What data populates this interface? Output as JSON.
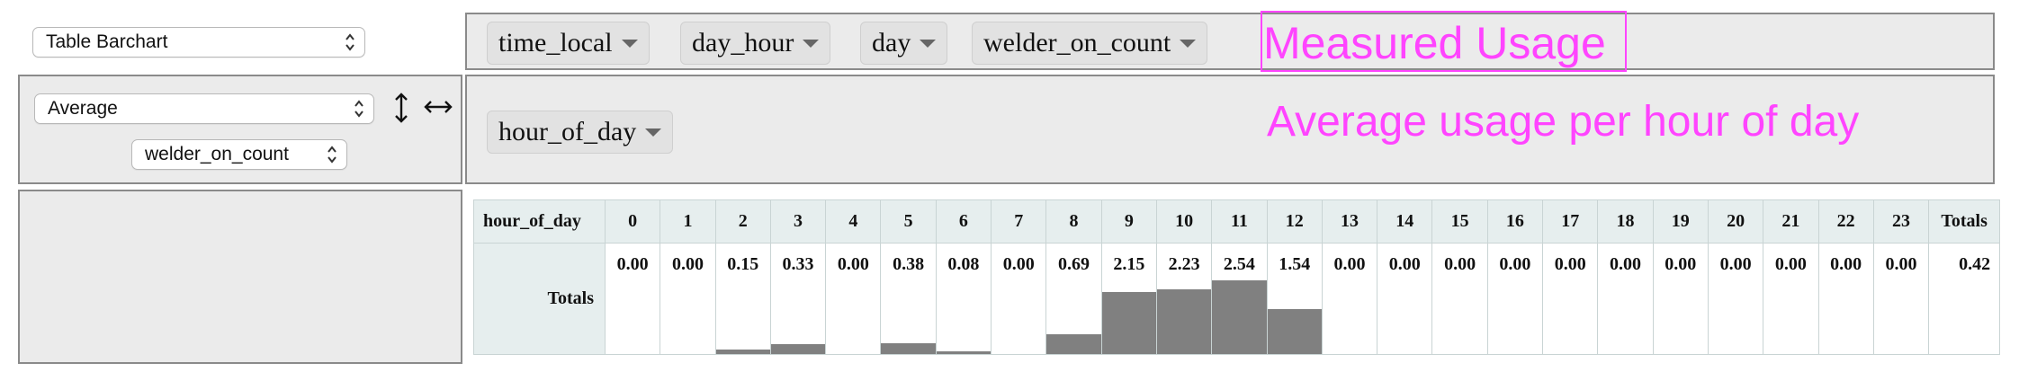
{
  "renderer_select": {
    "value": "Table Barchart"
  },
  "aggregator_select": {
    "value": "Average"
  },
  "attribute_select": {
    "value": "welder_on_count"
  },
  "column_fields": [
    "time_local",
    "day_hour",
    "day",
    "welder_on_count"
  ],
  "row_fields": [
    "hour_of_day"
  ],
  "annotations": {
    "title": "Measured Usage",
    "subtitle": "Average usage per hour of day"
  },
  "colors": {
    "accent": "#ff44ff",
    "bar": "#808080",
    "header_bg": "#e6eeee"
  },
  "icons": [
    "sort-vertical-icon",
    "swap-horizontal-icon"
  ],
  "chart_data": {
    "type": "table",
    "row_header": "hour_of_day",
    "row_label": "Totals",
    "categories": [
      "0",
      "1",
      "2",
      "3",
      "4",
      "5",
      "6",
      "7",
      "8",
      "9",
      "10",
      "11",
      "12",
      "13",
      "14",
      "15",
      "16",
      "17",
      "18",
      "19",
      "20",
      "21",
      "22",
      "23"
    ],
    "values": [
      0.0,
      0.0,
      0.15,
      0.33,
      0.0,
      0.38,
      0.08,
      0.0,
      0.69,
      2.15,
      2.23,
      2.54,
      1.54,
      0.0,
      0.0,
      0.0,
      0.0,
      0.0,
      0.0,
      0.0,
      0.0,
      0.0,
      0.0,
      0.0
    ],
    "labels": [
      "0.00",
      "0.00",
      "0.15",
      "0.33",
      "0.00",
      "0.38",
      "0.08",
      "0.00",
      "0.69",
      "2.15",
      "2.23",
      "2.54",
      "1.54",
      "0.00",
      "0.00",
      "0.00",
      "0.00",
      "0.00",
      "0.00",
      "0.00",
      "0.00",
      "0.00",
      "0.00",
      "0.00"
    ],
    "totals_header": "Totals",
    "grand_total": "0.42"
  }
}
